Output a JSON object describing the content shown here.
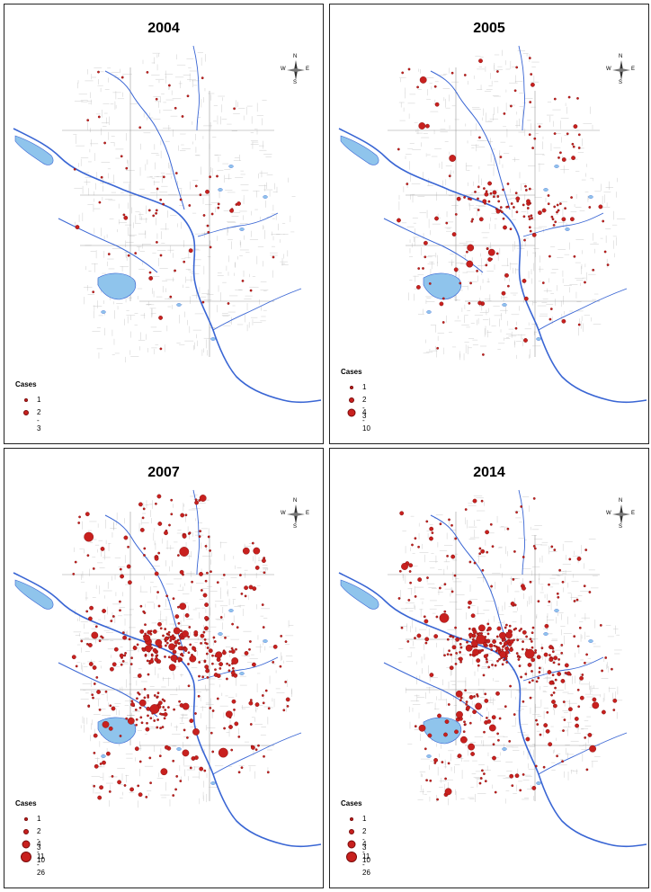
{
  "colors": {
    "boundary": "#9a9a9a",
    "river": "#3a66d4",
    "lake": "#8fc4ec",
    "dot": "#c8201e",
    "dot_edge": "#7a0b0b"
  },
  "compass": {
    "n": "N",
    "s": "S",
    "e": "E",
    "w": "W",
    "icon": "north-arrow-icon"
  },
  "legend_title": "Cases",
  "legend_classes": [
    {
      "label": "1",
      "size": 2
    },
    {
      "label": "2 - 3",
      "size": 4
    },
    {
      "label": "4 - 10",
      "size": 7
    },
    {
      "label": "11 - 26",
      "size": 10
    }
  ],
  "panels": [
    {
      "year": "2004",
      "classes": 2,
      "seed": 11,
      "counts": [
        60,
        8,
        0,
        0
      ]
    },
    {
      "year": "2005",
      "classes": 3,
      "seed": 23,
      "counts": [
        130,
        40,
        6,
        0
      ]
    },
    {
      "year": "2007",
      "classes": 4,
      "seed": 37,
      "counts": [
        300,
        120,
        25,
        4
      ]
    },
    {
      "year": "2014",
      "classes": 4,
      "seed": 53,
      "counts": [
        280,
        110,
        18,
        3
      ]
    }
  ]
}
